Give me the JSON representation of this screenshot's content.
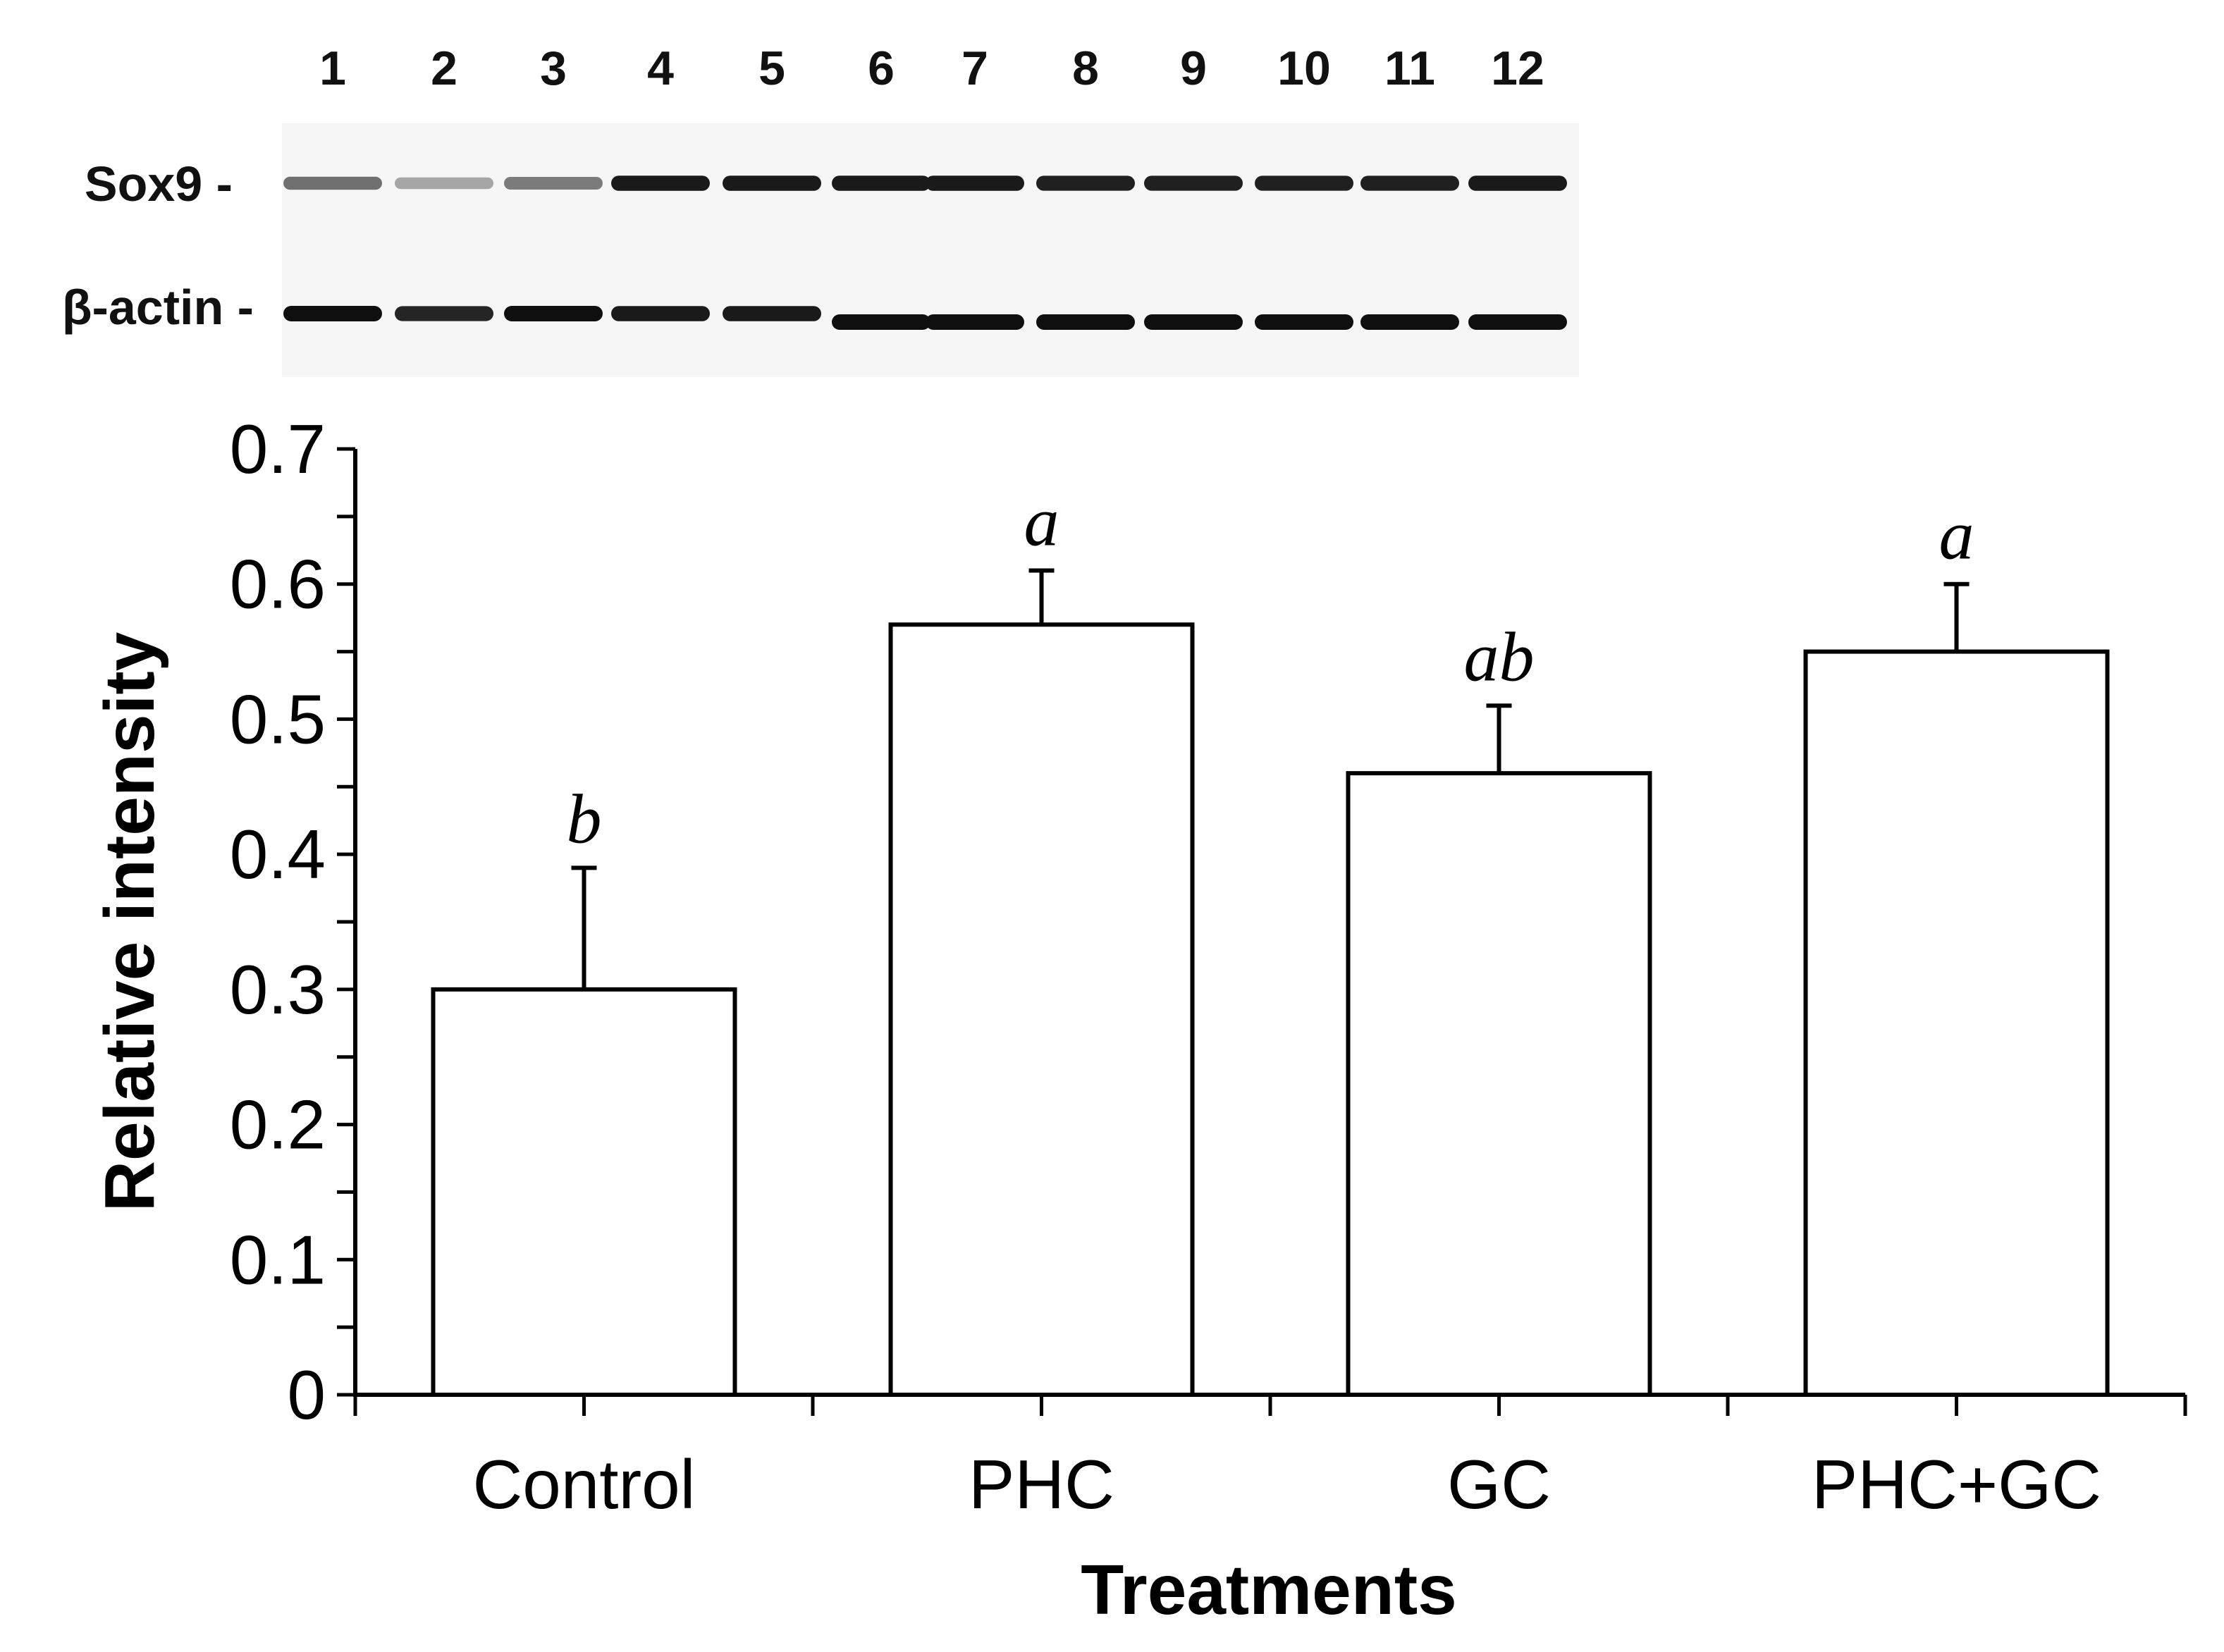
{
  "blot": {
    "lanes": [
      "1",
      "2",
      "3",
      "4",
      "5",
      "6",
      "7",
      "8",
      "9",
      "10",
      "11",
      "12"
    ],
    "rows": [
      {
        "label": "Sox9 -",
        "intensity": [
          0.55,
          0.3,
          0.5,
          0.95,
          0.95,
          0.95,
          0.95,
          0.92,
          0.92,
          0.92,
          0.92,
          0.95
        ]
      },
      {
        "label": "β-actin -",
        "intensity": [
          1.0,
          0.9,
          1.0,
          0.95,
          0.95,
          1.0,
          1.0,
          1.0,
          1.0,
          1.0,
          1.0,
          1.0
        ]
      }
    ]
  },
  "chart_data": {
    "type": "bar",
    "categories": [
      "Control",
      "PHC",
      "GC",
      "PHC+GC"
    ],
    "values": [
      0.3,
      0.57,
      0.46,
      0.55
    ],
    "errors": [
      0.09,
      0.04,
      0.05,
      0.05
    ],
    "significance": [
      "b",
      "a",
      "ab",
      "a"
    ],
    "xlabel": "Treatments",
    "ylabel": "Relative intensity",
    "ylim": [
      0,
      0.7
    ],
    "yticks": [
      "0",
      "0.1",
      "0.2",
      "0.3",
      "0.4",
      "0.5",
      "0.6",
      "0.7"
    ]
  }
}
